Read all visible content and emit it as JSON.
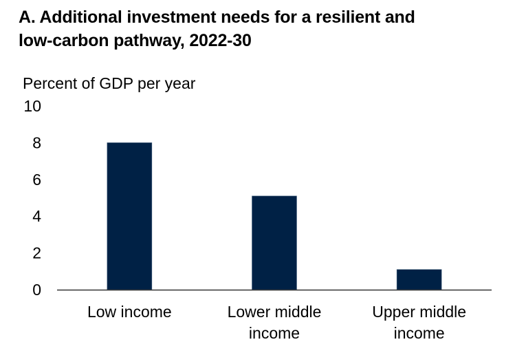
{
  "chart_data": {
    "type": "bar",
    "title": "A. Additional investment needs for a resilient and low-carbon pathway, 2022-30",
    "title_lines": [
      "A. Additional investment needs for a resilient and",
      "low-carbon pathway, 2022-30"
    ],
    "ylabel": "Percent of GDP per year",
    "xlabel": "",
    "categories": [
      "Low income",
      "Lower middle income",
      "Upper middle income"
    ],
    "category_lines": [
      [
        "Low income"
      ],
      [
        "Lower middle",
        "income"
      ],
      [
        "Upper middle",
        "income"
      ]
    ],
    "values": [
      8.0,
      5.1,
      1.1
    ],
    "ylim": [
      0,
      10
    ],
    "yticks": [
      0,
      2,
      4,
      6,
      8,
      10
    ],
    "grid": false,
    "legend": "none",
    "bar_color": "#002145",
    "axis_color": "#333333"
  }
}
